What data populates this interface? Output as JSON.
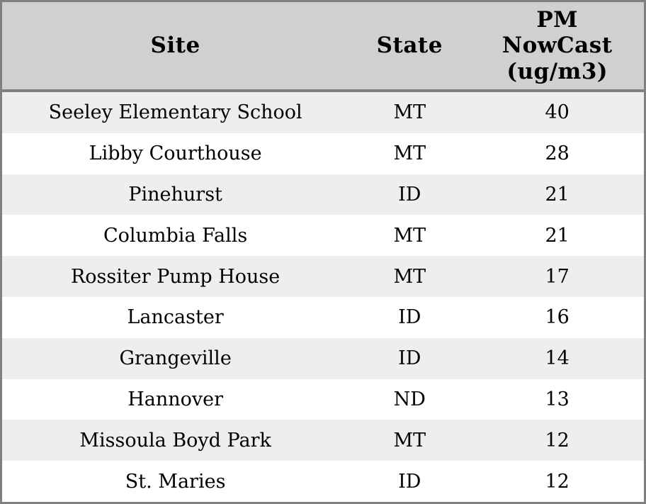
{
  "colors": {
    "border": "#808080",
    "header_bg": "#d0d0d0",
    "row_alt_bg": "#eeeeee",
    "row_bg": "#ffffff",
    "text": "#000000"
  },
  "chart_data": {
    "type": "table",
    "columns": [
      "Site",
      "State",
      "PM\nNowCast\n(ug/m3)"
    ],
    "column_names": [
      "site",
      "state",
      "pm_nowcast_ug_m3"
    ],
    "rows": [
      [
        "Seeley Elementary School",
        "MT",
        40
      ],
      [
        "Libby Courthouse",
        "MT",
        28
      ],
      [
        "Pinehurst",
        "ID",
        21
      ],
      [
        "Columbia Falls",
        "MT",
        21
      ],
      [
        "Rossiter Pump House",
        "MT",
        17
      ],
      [
        "Lancaster",
        "ID",
        16
      ],
      [
        "Grangeville",
        "ID",
        14
      ],
      [
        "Hannover",
        "ND",
        13
      ],
      [
        "Missoula Boyd Park",
        "MT",
        12
      ],
      [
        "St. Maries",
        "ID",
        12
      ]
    ],
    "layout": {
      "striped": true,
      "all_cells_centered": true,
      "header_position": "top"
    }
  }
}
